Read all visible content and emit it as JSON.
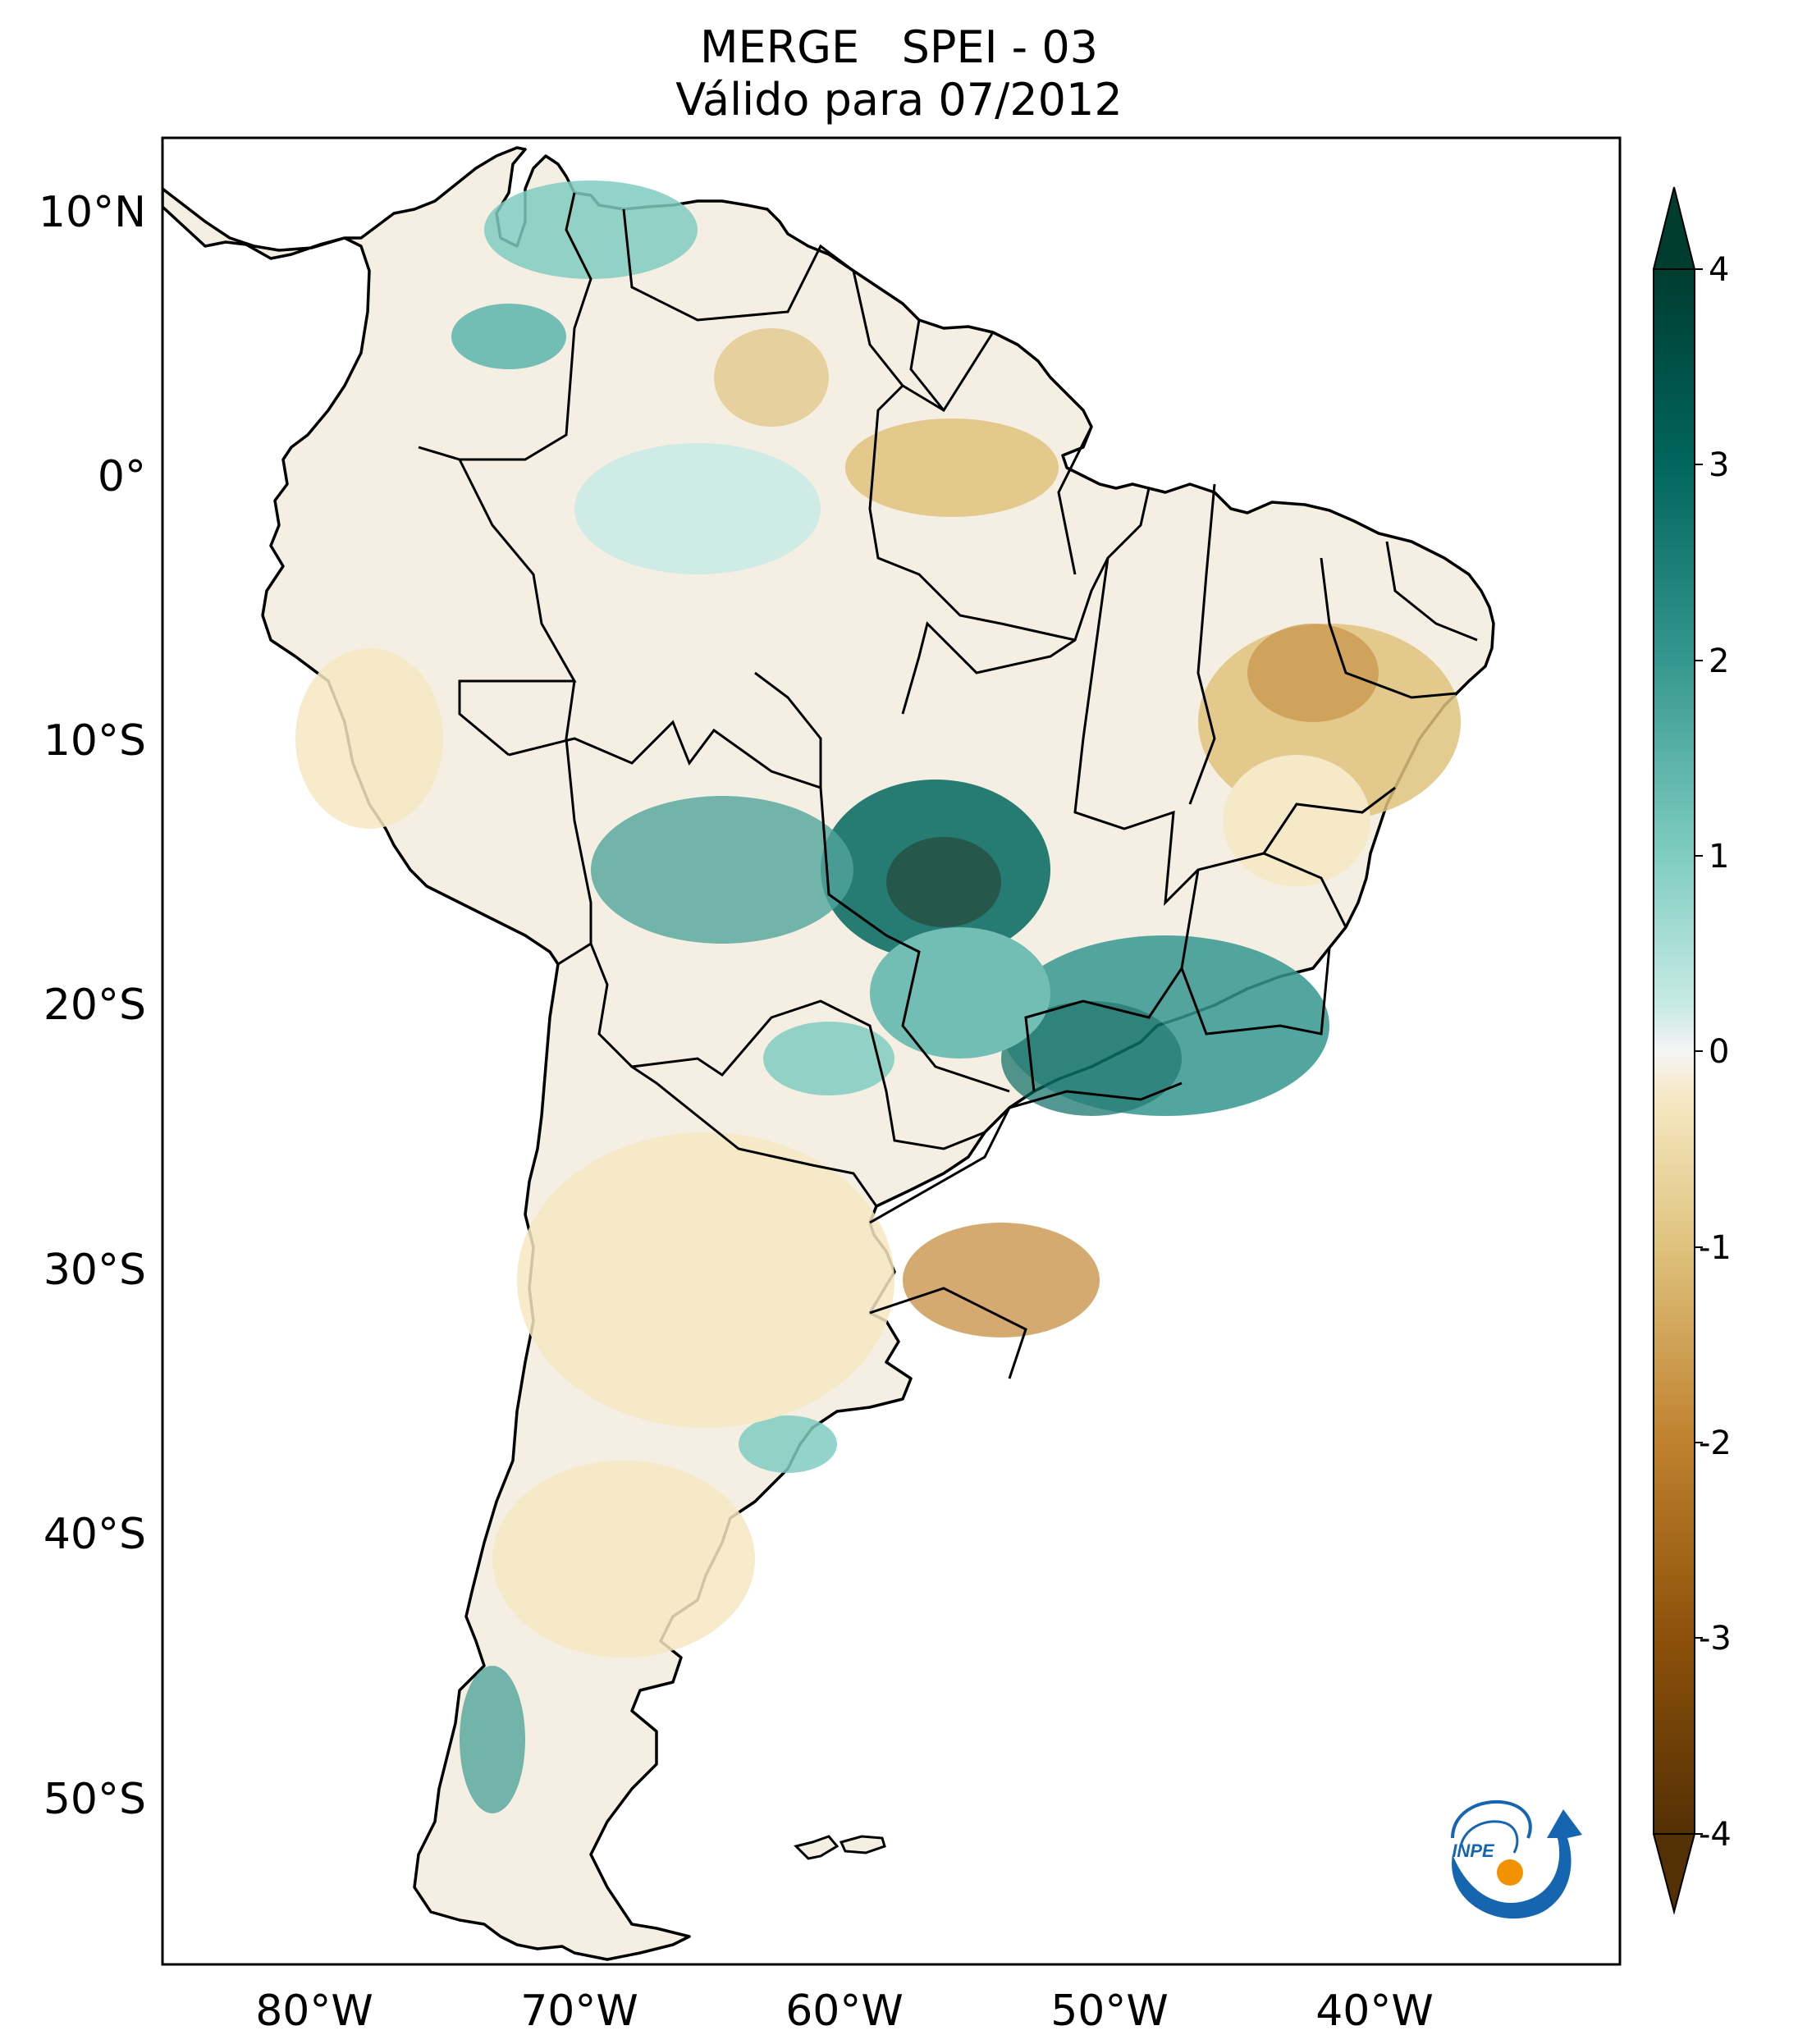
{
  "title": {
    "line1": "MERGE   SPEI - 03",
    "line2": "Válido para 07/2012"
  },
  "map": {
    "lat_labels": [
      "10°N",
      "0°",
      "10°S",
      "20°S",
      "30°S",
      "40°S",
      "50°S"
    ],
    "lon_labels": [
      "80°W",
      "70°W",
      "60°W",
      "50°W",
      "40°W"
    ],
    "extent": {
      "lon": [
        -85,
        -30
      ],
      "lat": [
        -56,
        13
      ]
    },
    "colormap": "BrBG"
  },
  "colorbar": {
    "ticks": [
      "4",
      "3",
      "2",
      "1",
      "0",
      "-1",
      "-2",
      "-3",
      "-4"
    ],
    "range": [
      -4,
      4
    ],
    "extend": "both",
    "colors": {
      "dry_extreme": "#543005",
      "dry": "#c58b32",
      "neutral": "#f5f5f5",
      "wet": "#5ab4ac",
      "wet_extreme": "#003c30"
    }
  },
  "logo": {
    "text": "INPE",
    "colors": {
      "blue": "#1565b0",
      "orange": "#f39200"
    }
  }
}
